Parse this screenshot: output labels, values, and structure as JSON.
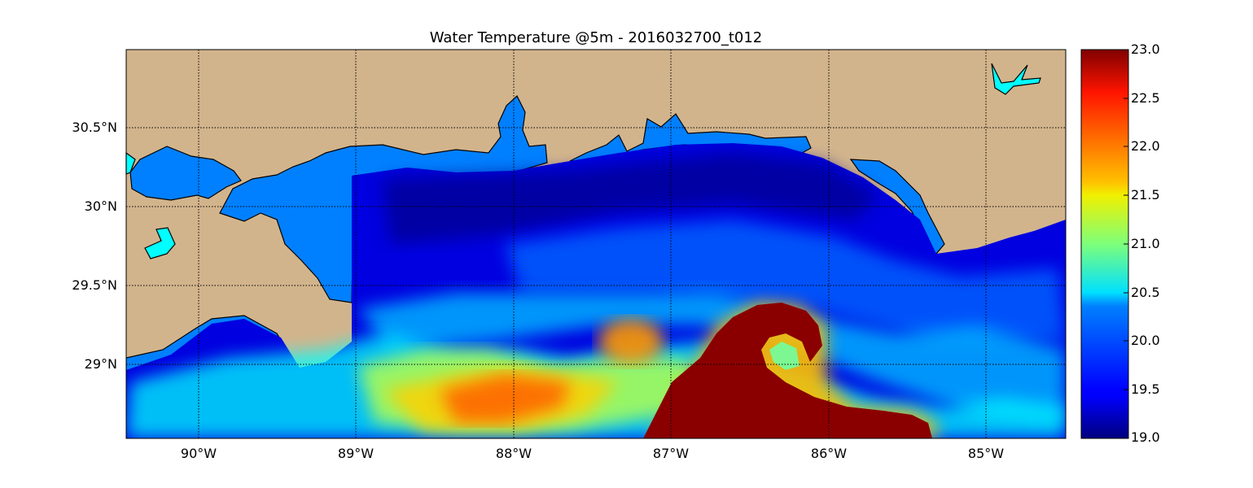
{
  "title": "Water Temperature @5m - 2016032700_t012",
  "colorbar": {
    "min": 19.0,
    "max": 23.0,
    "ticks": [
      "23.0",
      "22.5",
      "22.0",
      "21.5",
      "21.0",
      "20.5",
      "20.0",
      "19.5",
      "19.0"
    ],
    "colormap": "jet"
  },
  "axes": {
    "x_ticks": [
      "90°W",
      "89°W",
      "88°W",
      "87°W",
      "86°W",
      "85°W"
    ],
    "y_ticks": [
      "30.5°N",
      "30°N",
      "29.5°N",
      "29°N"
    ],
    "x_range_deg": [
      -90.47,
      -84.5
    ],
    "y_range_deg": [
      28.53,
      31.0
    ],
    "grid": "dotted"
  },
  "colors": {
    "land": "#d2b48c",
    "inland_water": "#0080ff",
    "lakes": "#00ffff",
    "coastline": "#000000"
  }
}
